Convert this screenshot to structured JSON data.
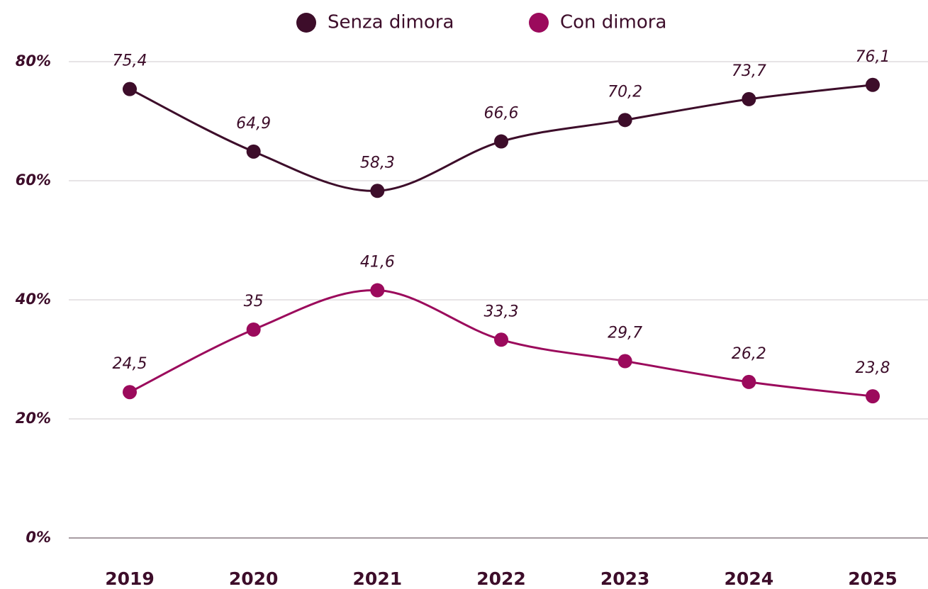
{
  "chart_data": {
    "type": "line",
    "categories": [
      "2019",
      "2020",
      "2021",
      "2022",
      "2023",
      "2024",
      "2025"
    ],
    "series": [
      {
        "name": "Senza dimora",
        "color": "#3d0d2a",
        "values": [
          75.4,
          64.9,
          58.3,
          66.6,
          70.2,
          73.7,
          76.1
        ],
        "value_labels": [
          "75,4",
          "64,9",
          "58,3",
          "66,6",
          "70,2",
          "73,7",
          "76,1"
        ]
      },
      {
        "name": "Con dimora",
        "color": "#9b0a5c",
        "values": [
          24.5,
          35,
          41.6,
          33.3,
          29.7,
          26.2,
          23.8
        ],
        "value_labels": [
          "24,5",
          "35",
          "41,6",
          "33,3",
          "29,7",
          "26,2",
          "23,8"
        ]
      }
    ],
    "ylim": [
      0,
      80
    ],
    "yticks": [
      {
        "value": 0,
        "label": "0%"
      },
      {
        "value": 20,
        "label": "20%"
      },
      {
        "value": 40,
        "label": "40%"
      },
      {
        "value": 60,
        "label": "60%"
      },
      {
        "value": 80,
        "label": "80%"
      }
    ],
    "grid": true,
    "legend": "top",
    "smooth": true
  }
}
